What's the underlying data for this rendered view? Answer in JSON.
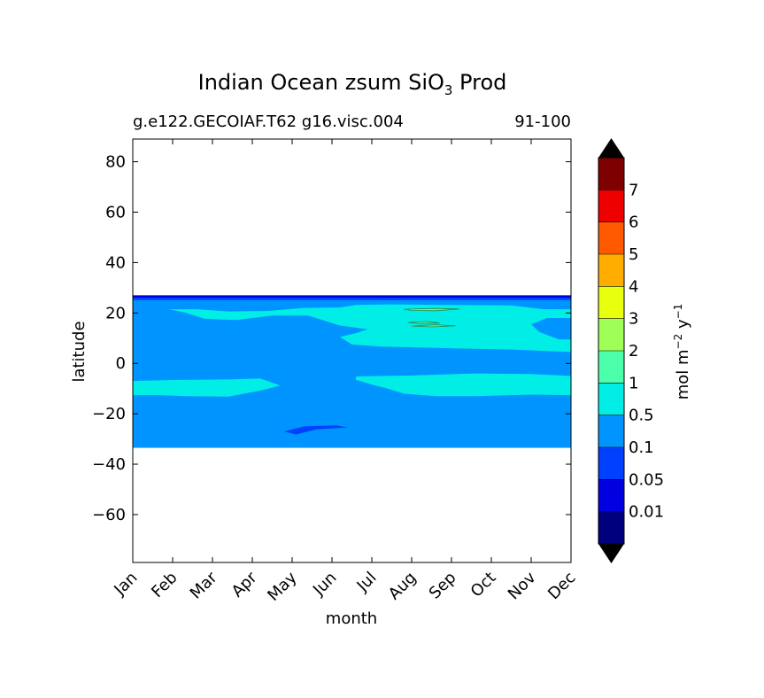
{
  "chart_data": {
    "type": "heatmap",
    "title_main": "Indian Ocean zsum SiO",
    "title_sub": "3",
    "title_tail": " Prod",
    "subtitle_left": "g.e122.GECOIAF.T62 g16.visc.004",
    "subtitle_right": "91-100",
    "xlabel": "month",
    "ylabel": "latitude",
    "x_ticks": [
      "Jan",
      "Feb",
      "Mar",
      "Apr",
      "May",
      "Jun",
      "Jul",
      "Aug",
      "Sep",
      "Oct",
      "Nov",
      "Dec"
    ],
    "y_ticks": [
      80,
      60,
      40,
      20,
      0,
      -20,
      -40,
      -60
    ],
    "ylim": [
      -79,
      89
    ],
    "xlim": [
      0,
      11
    ],
    "colorbar": {
      "label_main": "mol m",
      "label_exp1": "−2",
      "label_mid": " y",
      "label_exp2": "−1",
      "levels": [
        "0.01",
        "0.05",
        "0.1",
        "0.5",
        "1",
        "2",
        "3",
        "4",
        "5",
        "6",
        "7"
      ],
      "colors": [
        "#00007f",
        "#0000e0",
        "#0040ff",
        "#0094ff",
        "#00eee6",
        "#4cffaa",
        "#a0ff56",
        "#e8ff0e",
        "#ffae00",
        "#ff5a00",
        "#ef0000",
        "#7f0000"
      ],
      "under_color": "#000000",
      "over_color": "#000000"
    },
    "regions": {
      "top_edge_lat": [
        27,
        26
      ],
      "bottom_edge_lat": -33.5,
      "base_level": "0.1",
      "north_band_level": "0.5",
      "south_band_level": "0.5",
      "patch_level": "1",
      "low_patch_level": "0.05"
    }
  }
}
